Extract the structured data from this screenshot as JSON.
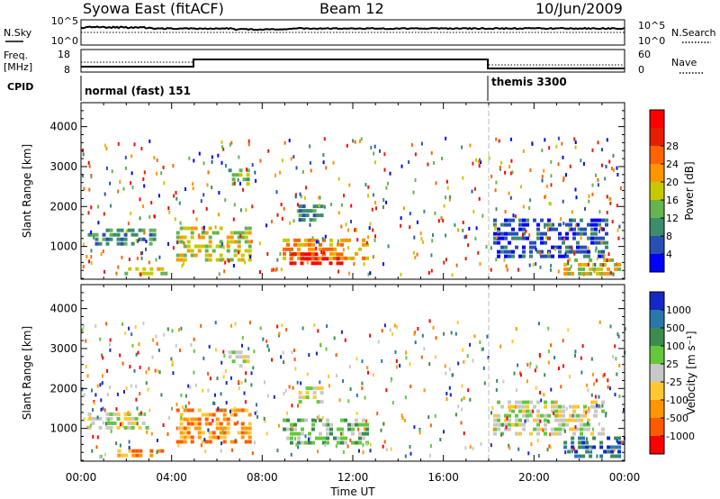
{
  "header": {
    "station": "Syowa East (fitACF)",
    "beam": "Beam 12",
    "date": "10/Jun/2009"
  },
  "top_panels": {
    "nsky_label": "N.Sky",
    "nsearch_label": "N.Search",
    "noise_ticks_left": [
      "10^5",
      "10^0"
    ],
    "noise_ticks_right": [
      "10^5",
      "10^0"
    ],
    "freq_label_line1": "Freq.",
    "freq_label_line2": "[MHz]",
    "freq_ticks": [
      "18",
      "8"
    ],
    "nave_label": "Nave",
    "nave_ticks": [
      "60",
      "0"
    ],
    "cpid_label": "CPID",
    "cpid_modes": [
      {
        "name": "normal (fast) 151",
        "start_hour": 0
      },
      {
        "name": "themis 3300",
        "start_hour": 18
      }
    ]
  },
  "colors": {
    "power_scale": [
      "#0000ff",
      "#2850b4",
      "#3c8c6e",
      "#64b450",
      "#c8c800",
      "#ff9600",
      "#ff6400",
      "#e61e00",
      "#ff0000"
    ],
    "velocity_scale": [
      "#ff0000",
      "#ff5a00",
      "#ff9600",
      "#ffc832",
      "#c8c8c8",
      "#64c83c",
      "#3c8c50",
      "#2878aa",
      "#1428c8"
    ]
  },
  "chart_data": [
    {
      "type": "heatmap",
      "panel": "power",
      "ylabel": "Slant Range [km]",
      "xlabel": "Time UT",
      "x_ticks": [
        "00:00",
        "04:00",
        "08:00",
        "12:00",
        "16:00",
        "20:00",
        "00:00"
      ],
      "y_ticks": [
        "1000",
        "2000",
        "3000",
        "4000"
      ],
      "xlim": [
        0,
        24
      ],
      "ylim": [
        180,
        4600
      ],
      "colorbar": {
        "label": "Power [dB]",
        "ticks": [
          "4",
          "8",
          "12",
          "16",
          "20",
          "24",
          "28"
        ],
        "range": [
          0,
          30
        ]
      },
      "regions": [
        {
          "t0": 0.3,
          "t1": 3.2,
          "r0": 1100,
          "r1": 1450,
          "level": 2
        },
        {
          "t0": 1.6,
          "t1": 3.8,
          "r0": 300,
          "r1": 480,
          "level": 4
        },
        {
          "t0": 4.2,
          "t1": 7.4,
          "r0": 700,
          "r1": 1500,
          "level": 4
        },
        {
          "t0": 6.5,
          "t1": 7.4,
          "r0": 2550,
          "r1": 2950,
          "level": 3
        },
        {
          "t0": 8.9,
          "t1": 12.7,
          "r0": 650,
          "r1": 1200,
          "level": 5
        },
        {
          "t0": 9.2,
          "t1": 11.5,
          "r0": 600,
          "r1": 850,
          "level": 7
        },
        {
          "t0": 9.6,
          "t1": 10.6,
          "r0": 1650,
          "r1": 2050,
          "level": 2
        },
        {
          "t0": 18.2,
          "t1": 23.2,
          "r0": 700,
          "r1": 1700,
          "level": 1
        },
        {
          "t0": 21.3,
          "t1": 24.0,
          "r0": 300,
          "r1": 700,
          "level": 4
        }
      ]
    },
    {
      "type": "heatmap",
      "panel": "velocity",
      "ylabel": "Slant Range [km]",
      "xlabel": "Time UT",
      "x_ticks": [
        "00:00",
        "04:00",
        "08:00",
        "12:00",
        "16:00",
        "20:00",
        "00:00"
      ],
      "y_ticks": [
        "1000",
        "2000",
        "3000",
        "4000"
      ],
      "xlim": [
        0,
        24
      ],
      "ylim": [
        180,
        4600
      ],
      "colorbar": {
        "label": "Velocity [m s^-1]",
        "ticks": [
          "1000",
          "500",
          "100",
          "25",
          "-25",
          "-100",
          "-500",
          "-1000"
        ],
        "range": [
          -1000,
          1000
        ]
      },
      "regions": [
        {
          "t0": 0.3,
          "t1": 3.0,
          "r0": 1050,
          "r1": 1400,
          "level": 4
        },
        {
          "t0": 1.6,
          "t1": 3.8,
          "r0": 280,
          "r1": 480,
          "level": 2
        },
        {
          "t0": 4.2,
          "t1": 7.4,
          "r0": 700,
          "r1": 1500,
          "level": 2
        },
        {
          "t0": 6.5,
          "t1": 7.4,
          "r0": 2550,
          "r1": 2950,
          "level": 4
        },
        {
          "t0": 8.9,
          "t1": 12.7,
          "r0": 650,
          "r1": 1250,
          "level": 5
        },
        {
          "t0": 9.6,
          "t1": 10.6,
          "r0": 1650,
          "r1": 2050,
          "level": 4
        },
        {
          "t0": 18.2,
          "t1": 23.0,
          "r0": 900,
          "r1": 1700,
          "level": 4
        },
        {
          "t0": 21.3,
          "t1": 24.0,
          "r0": 300,
          "r1": 800,
          "level": 7
        }
      ]
    }
  ]
}
